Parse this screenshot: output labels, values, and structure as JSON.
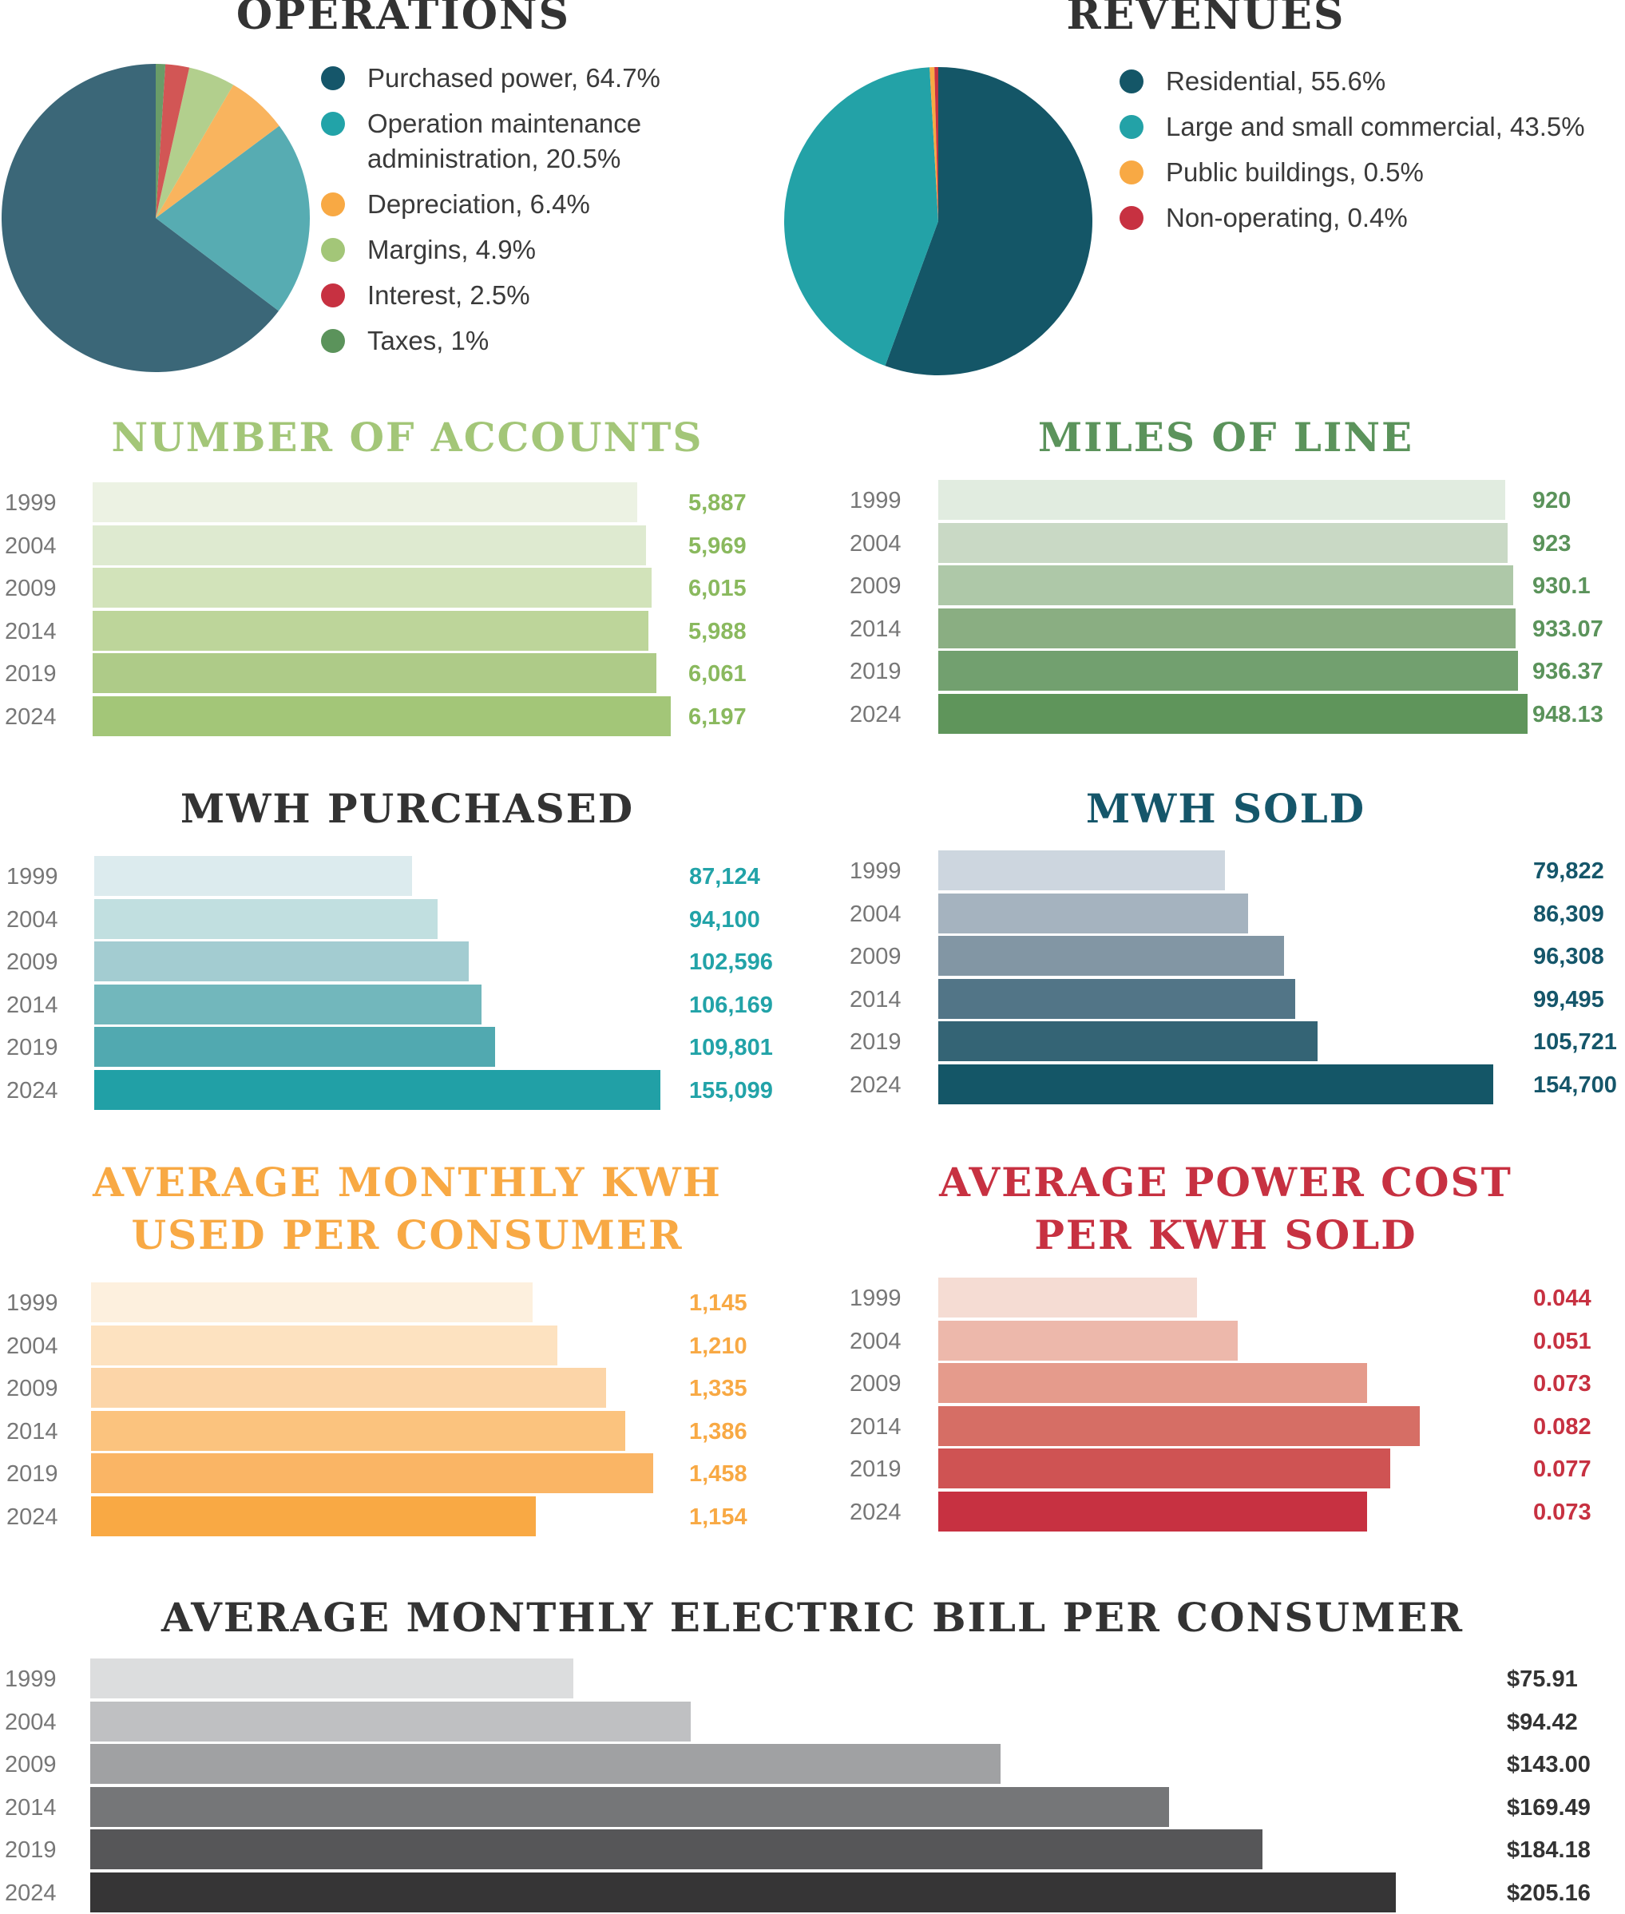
{
  "chart_data": [
    {
      "id": "operations",
      "type": "pie",
      "title": "OPERATIONS",
      "title_color": "#333333",
      "slices": [
        {
          "label": "Purchased power, 64.7%",
          "name": "Purchased power",
          "value": 64.7,
          "color": "#3b6778",
          "dot_color": "#15566a"
        },
        {
          "label": "Operation maintenance administration, 20.5%",
          "label_lines": [
            "Operation maintenance",
            "administration, 20.5%"
          ],
          "name": "Operation maintenance administration",
          "value": 20.5,
          "color": "#57acb2",
          "dot_color": "#22a3a8"
        },
        {
          "label": "Depreciation, 6.4%",
          "name": "Depreciation",
          "value": 6.4,
          "color": "#f9b45e",
          "dot_color": "#f8a944"
        },
        {
          "label": "Margins, 4.9%",
          "name": "Margins",
          "value": 4.9,
          "color": "#b2cf8d",
          "dot_color": "#a3c678"
        },
        {
          "label": "Interest, 2.5%",
          "name": "Interest",
          "value": 2.5,
          "color": "#d25655",
          "dot_color": "#c73141"
        },
        {
          "label": "Taxes, 1%",
          "name": "Taxes",
          "value": 1.0,
          "color": "#6a9c68",
          "dot_color": "#5b935b"
        }
      ],
      "legend_placement": "right"
    },
    {
      "id": "revenues",
      "type": "pie",
      "title": "REVENUES",
      "title_color": "#333333",
      "slices": [
        {
          "label": "Residential, 55.6%",
          "name": "Residential",
          "value": 55.6,
          "color": "#145667",
          "dot_color": "#145667"
        },
        {
          "label": "Large and small commercial, 43.5%",
          "name": "Large and small commercial",
          "value": 43.5,
          "color": "#23a2a7",
          "dot_color": "#23a2a7"
        },
        {
          "label": "Public buildings, 0.5%",
          "name": "Public buildings",
          "value": 0.5,
          "color": "#f8a944",
          "dot_color": "#f8a944"
        },
        {
          "label": "Non-operating, 0.4%",
          "name": "Non-operating",
          "value": 0.4,
          "color": "#c73141",
          "dot_color": "#c73141"
        }
      ],
      "legend_placement": "right"
    },
    {
      "id": "accounts",
      "type": "bar",
      "orientation": "horizontal",
      "title": "NUMBER OF ACCOUNTS",
      "title_color": "#a3c678",
      "value_color": "#8ab95e",
      "categories": [
        "1999",
        "2004",
        "2009",
        "2014",
        "2019",
        "2024"
      ],
      "values": [
        5887,
        5969,
        6015,
        5988,
        6061,
        6197
      ],
      "value_labels": [
        "5,887",
        "5,969",
        "6,015",
        "5,988",
        "6,061",
        "6,197"
      ],
      "colors": [
        "#ecf2e3",
        "#deead0",
        "#d2e3ba",
        "#bdd59a",
        "#aecb88",
        "#a3c678"
      ]
    },
    {
      "id": "miles",
      "type": "bar",
      "orientation": "horizontal",
      "title": "MILES OF LINE",
      "title_color": "#5b935b",
      "value_color": "#5b935b",
      "categories": [
        "1999",
        "2004",
        "2009",
        "2014",
        "2019",
        "2024"
      ],
      "values": [
        920,
        923,
        930.1,
        933.07,
        936.37,
        948.13
      ],
      "value_labels": [
        "920",
        "923",
        "930.1",
        "933.07",
        "936.37",
        "948.13"
      ],
      "colors": [
        "#e1ece0",
        "#c9d9c5",
        "#aec8a8",
        "#8aae82",
        "#72a06f",
        "#5f955b"
      ]
    },
    {
      "id": "mwh_purchased",
      "type": "bar",
      "orientation": "horizontal",
      "title": "MWH PURCHASED",
      "title_color": "#333333",
      "value_color": "#22a3a8",
      "categories": [
        "1999",
        "2004",
        "2009",
        "2014",
        "2019",
        "2024"
      ],
      "values": [
        87124,
        94100,
        102596,
        106169,
        109801,
        155099
      ],
      "value_labels": [
        "87,124",
        "94,100",
        "102,596",
        "106,169",
        "109,801",
        "155,099"
      ],
      "colors": [
        "#dcebee",
        "#c1dfe0",
        "#a3ccd1",
        "#72b7bc",
        "#51a9b0",
        "#21a0a6"
      ]
    },
    {
      "id": "mwh_sold",
      "type": "bar",
      "orientation": "horizontal",
      "title": "MWH SOLD",
      "title_color": "#15566a",
      "value_color": "#15566a",
      "categories": [
        "1999",
        "2004",
        "2009",
        "2014",
        "2019",
        "2024"
      ],
      "values": [
        79822,
        86309,
        96308,
        99495,
        105721,
        154700
      ],
      "value_labels": [
        "79,822",
        "86,309",
        "96,308",
        "99,495",
        "105,721",
        "154,700"
      ],
      "colors": [
        "#cdd6df",
        "#a5b3bf",
        "#8296a4",
        "#527587",
        "#346475",
        "#145667"
      ]
    },
    {
      "id": "avg_kwh",
      "type": "bar",
      "orientation": "horizontal",
      "title": "AVERAGE MONTHLY KWH USED PER CONSUMER",
      "title_lines": [
        "AVERAGE MONTHLY KWH",
        "USED PER CONSUMER"
      ],
      "title_color": "#f8a944",
      "value_color": "#f8a944",
      "categories": [
        "1999",
        "2004",
        "2009",
        "2014",
        "2019",
        "2024"
      ],
      "values": [
        1145,
        1210,
        1335,
        1386,
        1458,
        1154
      ],
      "value_labels": [
        "1,145",
        "1,210",
        "1,335",
        "1,386",
        "1,458",
        "1,154"
      ],
      "colors": [
        "#fdf0de",
        "#fde2c0",
        "#fcd5a8",
        "#fbc37e",
        "#fab565",
        "#f9a944"
      ]
    },
    {
      "id": "power_cost",
      "type": "bar",
      "orientation": "horizontal",
      "title": "AVERAGE POWER COST PER KWH SOLD",
      "title_lines": [
        "AVERAGE POWER COST",
        "PER KWH SOLD"
      ],
      "title_color": "#c73141",
      "value_color": "#c73141",
      "categories": [
        "1999",
        "2004",
        "2009",
        "2014",
        "2019",
        "2024"
      ],
      "values": [
        0.044,
        0.051,
        0.073,
        0.082,
        0.077,
        0.073
      ],
      "value_labels": [
        "0.044",
        "0.051",
        "0.073",
        "0.082",
        "0.077",
        "0.073"
      ],
      "colors": [
        "#f5dcd3",
        "#edb8ab",
        "#e59b8c",
        "#d66e65",
        "#cf5353",
        "#c73141"
      ]
    },
    {
      "id": "electric_bill",
      "type": "bar",
      "orientation": "horizontal",
      "title": "AVERAGE MONTHLY ELECTRIC BILL PER CONSUMER",
      "title_color": "#333333",
      "value_color": "#333333",
      "categories": [
        "1999",
        "2004",
        "2009",
        "2014",
        "2019",
        "2024"
      ],
      "values": [
        75.91,
        94.42,
        143.0,
        169.49,
        184.18,
        205.16
      ],
      "value_labels": [
        "$75.91",
        "$94.42",
        "$143.00",
        "$169.49",
        "$184.18",
        "$205.16"
      ],
      "colors": [
        "#dcddde",
        "#bfc0c2",
        "#a0a1a3",
        "#757678",
        "#565658",
        "#363536"
      ]
    }
  ]
}
